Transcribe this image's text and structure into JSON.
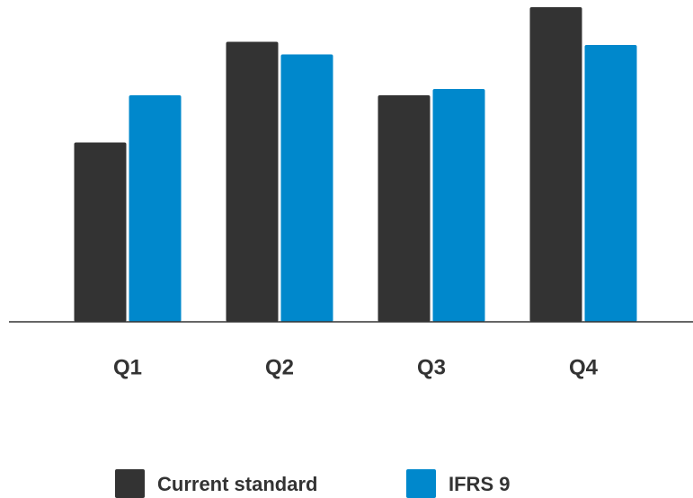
{
  "chart_data": {
    "type": "bar",
    "categories": [
      "Q1",
      "Q2",
      "Q3",
      "Q4"
    ],
    "series": [
      {
        "name": "Current standard",
        "color": "#333333",
        "values": [
          57,
          89,
          72,
          100
        ]
      },
      {
        "name": "IFRS 9",
        "color": "#0088cc",
        "values": [
          72,
          85,
          74,
          88
        ]
      }
    ],
    "ylim": [
      0,
      100
    ]
  }
}
